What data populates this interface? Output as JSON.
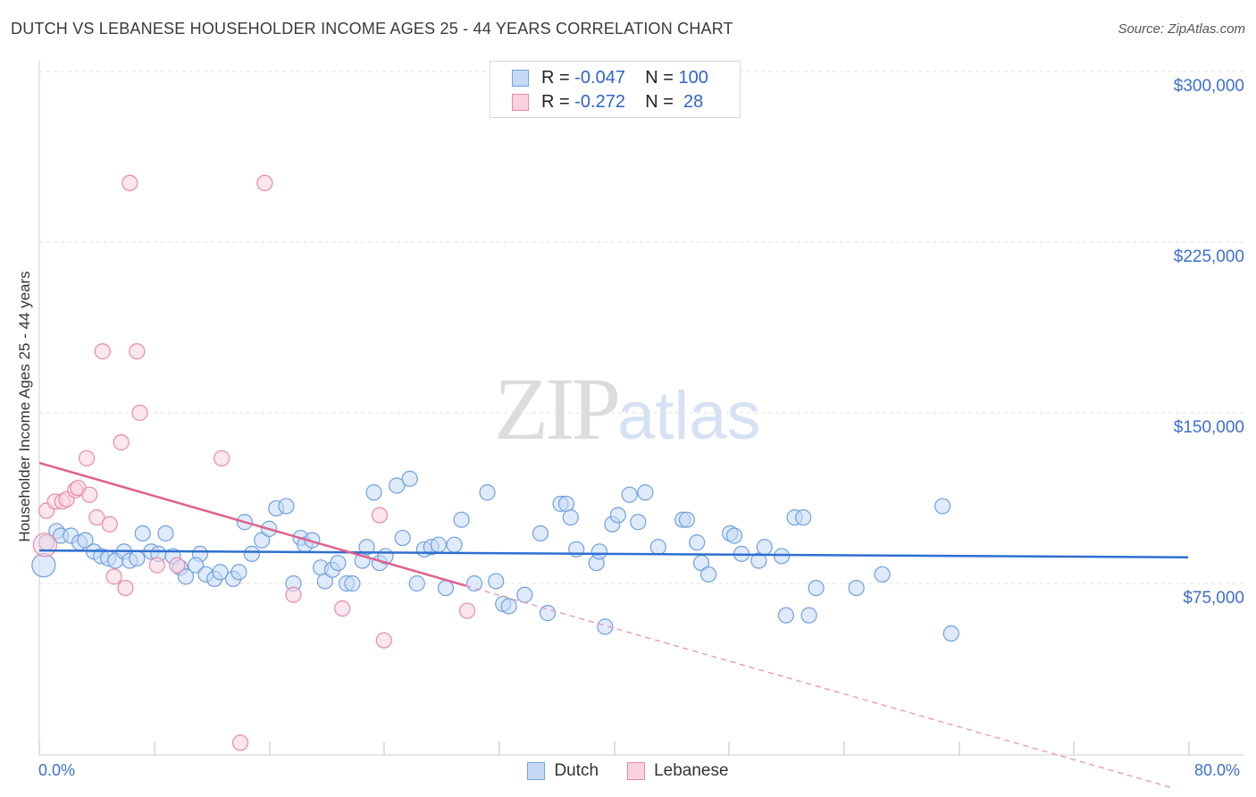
{
  "header": {
    "title": "DUTCH VS LEBANESE HOUSEHOLDER INCOME AGES 25 - 44 YEARS CORRELATION CHART",
    "source": "Source: ZipAtlas.com"
  },
  "watermark": {
    "zip": "ZIP",
    "atlas": "atlas"
  },
  "legend": {
    "rows": [
      {
        "r_label": "R = ",
        "r_value": "-0.047",
        "n_label": "N = ",
        "n_value": "100",
        "color": "#6fa1e0",
        "fill": "#c5d9f5"
      },
      {
        "r_label": "R = ",
        "r_value": "-0.272",
        "n_label": "N = ",
        "n_value": " 28",
        "color": "#e88aa8",
        "fill": "#fbd1de"
      }
    ]
  },
  "bottom_legend": [
    {
      "label": "Dutch",
      "color": "#6fa1e0",
      "fill": "#c5d9f5"
    },
    {
      "label": "Lebanese",
      "color": "#e88aa8",
      "fill": "#fbd1de"
    }
  ],
  "chart_data": {
    "type": "scatter",
    "title": "DUTCH VS LEBANESE HOUSEHOLDER INCOME AGES 25 - 44 YEARS CORRELATION CHART",
    "xlabel": "",
    "ylabel": "Householder Income Ages 25 - 44 years",
    "xlim": [
      0,
      80
    ],
    "ylim": [
      0,
      310000
    ],
    "x_tick_labels": [
      "0.0%",
      "80.0%"
    ],
    "y_ticks": [
      75000,
      150000,
      225000,
      300000
    ],
    "y_tick_labels": [
      "$75,000",
      "$150,000",
      "$225,000",
      "$300,000"
    ],
    "grid": true,
    "legend_position": "top-center",
    "series": [
      {
        "name": "Dutch",
        "color": "#6fa1e0",
        "fill": "#c5d9f5",
        "trend": {
          "x": [
            0,
            80
          ],
          "y": [
            89500,
            86500
          ],
          "style": "solid"
        },
        "points": [
          [
            0.3,
            83000
          ],
          [
            0.5,
            93000
          ],
          [
            1.2,
            98000
          ],
          [
            1.5,
            96000
          ],
          [
            2.2,
            96000
          ],
          [
            2.8,
            93000
          ],
          [
            3.2,
            94000
          ],
          [
            3.8,
            89000
          ],
          [
            4.3,
            87000
          ],
          [
            4.8,
            86000
          ],
          [
            5.3,
            85000
          ],
          [
            5.9,
            89000
          ],
          [
            6.3,
            85000
          ],
          [
            6.8,
            86000
          ],
          [
            7.2,
            97000
          ],
          [
            7.8,
            89000
          ],
          [
            8.3,
            88000
          ],
          [
            8.8,
            97000
          ],
          [
            9.3,
            87000
          ],
          [
            9.8,
            82000
          ],
          [
            10.2,
            78000
          ],
          [
            11.2,
            88000
          ],
          [
            10.9,
            83000
          ],
          [
            11.6,
            79000
          ],
          [
            12.2,
            77000
          ],
          [
            12.6,
            80000
          ],
          [
            13.5,
            77000
          ],
          [
            13.9,
            80000
          ],
          [
            14.3,
            102000
          ],
          [
            14.8,
            88000
          ],
          [
            15.5,
            94000
          ],
          [
            16.0,
            99000
          ],
          [
            16.5,
            108000
          ],
          [
            17.2,
            109000
          ],
          [
            17.7,
            75000
          ],
          [
            18.2,
            95000
          ],
          [
            18.5,
            92000
          ],
          [
            19.0,
            94000
          ],
          [
            19.6,
            82000
          ],
          [
            19.9,
            76000
          ],
          [
            20.4,
            81000
          ],
          [
            20.8,
            84000
          ],
          [
            21.4,
            75000
          ],
          [
            21.8,
            75000
          ],
          [
            22.5,
            85000
          ],
          [
            22.8,
            91000
          ],
          [
            23.3,
            115000
          ],
          [
            23.7,
            84000
          ],
          [
            24.1,
            87000
          ],
          [
            24.9,
            118000
          ],
          [
            25.3,
            95000
          ],
          [
            25.8,
            121000
          ],
          [
            26.3,
            75000
          ],
          [
            26.8,
            90000
          ],
          [
            27.3,
            91000
          ],
          [
            27.8,
            92000
          ],
          [
            28.3,
            73000
          ],
          [
            28.9,
            92000
          ],
          [
            29.4,
            103000
          ],
          [
            30.3,
            75000
          ],
          [
            31.2,
            115000
          ],
          [
            31.8,
            76000
          ],
          [
            32.3,
            66000
          ],
          [
            32.7,
            65000
          ],
          [
            33.8,
            70000
          ],
          [
            34.9,
            97000
          ],
          [
            35.4,
            62000
          ],
          [
            36.3,
            110000
          ],
          [
            36.7,
            110000
          ],
          [
            37.0,
            104000
          ],
          [
            37.4,
            90000
          ],
          [
            38.8,
            84000
          ],
          [
            39.0,
            89000
          ],
          [
            39.4,
            56000
          ],
          [
            39.9,
            101000
          ],
          [
            40.3,
            105000
          ],
          [
            41.1,
            114000
          ],
          [
            41.7,
            102000
          ],
          [
            42.2,
            115000
          ],
          [
            43.1,
            91000
          ],
          [
            44.8,
            103000
          ],
          [
            45.1,
            103000
          ],
          [
            45.8,
            93000
          ],
          [
            46.1,
            84000
          ],
          [
            46.6,
            79000
          ],
          [
            48.1,
            97000
          ],
          [
            48.4,
            96000
          ],
          [
            48.9,
            88000
          ],
          [
            50.1,
            85000
          ],
          [
            50.5,
            91000
          ],
          [
            51.7,
            87000
          ],
          [
            52.0,
            61000
          ],
          [
            52.6,
            104000
          ],
          [
            53.2,
            104000
          ],
          [
            53.6,
            61000
          ],
          [
            54.1,
            73000
          ],
          [
            56.9,
            73000
          ],
          [
            58.7,
            79000
          ],
          [
            62.9,
            109000
          ],
          [
            63.5,
            53000
          ]
        ]
      },
      {
        "name": "Lebanese",
        "color": "#e88aa8",
        "fill": "#fbd1de",
        "trend": {
          "x": [
            0,
            29.7
          ],
          "y": [
            128000,
            74000
          ],
          "style": "solid",
          "extended": {
            "x": [
              29.7,
              79
            ],
            "y": [
              74000,
              -15000
            ],
            "style": "dashed"
          }
        },
        "points": [
          [
            0.4,
            92000
          ],
          [
            0.5,
            107000
          ],
          [
            1.1,
            111000
          ],
          [
            1.6,
            111000
          ],
          [
            1.9,
            112000
          ],
          [
            2.5,
            116000
          ],
          [
            2.7,
            117000
          ],
          [
            3.3,
            130000
          ],
          [
            3.5,
            114000
          ],
          [
            4.0,
            104000
          ],
          [
            4.4,
            177000
          ],
          [
            4.9,
            101000
          ],
          [
            5.2,
            78000
          ],
          [
            6.0,
            73000
          ],
          [
            6.3,
            251000
          ],
          [
            6.8,
            177000
          ],
          [
            7.0,
            150000
          ],
          [
            5.7,
            137000
          ],
          [
            8.2,
            83000
          ],
          [
            9.6,
            83000
          ],
          [
            12.7,
            130000
          ],
          [
            14.0,
            5000
          ],
          [
            15.7,
            251000
          ],
          [
            17.7,
            70000
          ],
          [
            21.1,
            64000
          ],
          [
            23.7,
            105000
          ],
          [
            24.0,
            50000
          ],
          [
            29.8,
            63000
          ]
        ]
      }
    ]
  }
}
